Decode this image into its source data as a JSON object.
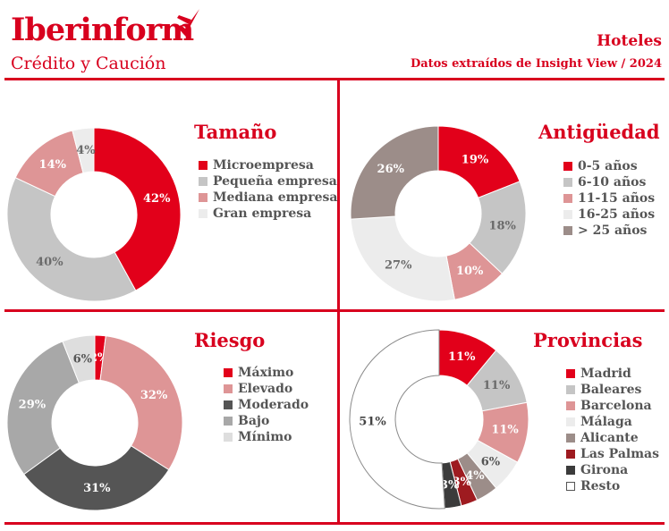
{
  "header": {
    "brand": "Iberinform",
    "brand_sub": "Crédito y Caución",
    "title": "Hoteles",
    "subtitle": "Datos extraídos de Insight View / 2024"
  },
  "colors": {
    "brand_red": "#d8001e",
    "rule_red": "#d8001e"
  },
  "chart_data": [
    {
      "type": "pie",
      "title": "Tamaño",
      "categories": [
        "Microempresa",
        "Pequeña empresa",
        "Mediana empresa",
        "Gran empresa"
      ],
      "values": [
        42,
        40,
        14,
        4
      ],
      "labels": [
        "42%",
        "40%",
        "14%",
        "4%"
      ],
      "colors": [
        "#e2001a",
        "#c5c5c5",
        "#de9596",
        "#ececec"
      ],
      "label_colors": [
        "#ffffff",
        "#6b6b6b",
        "#ffffff",
        "#6b6b6b"
      ],
      "donut": true,
      "legend_position": "right"
    },
    {
      "type": "pie",
      "title": "Antigüedad",
      "categories": [
        "0-5 años",
        "6-10 años",
        "11-15 años",
        "16-25 años",
        "> 25 años"
      ],
      "values": [
        19,
        18,
        10,
        27,
        26
      ],
      "labels": [
        "19%",
        "18%",
        "10%",
        "27%",
        "26%"
      ],
      "colors": [
        "#e2001a",
        "#c5c5c5",
        "#de9596",
        "#ececec",
        "#9c8d89"
      ],
      "label_colors": [
        "#ffffff",
        "#6b6b6b",
        "#ffffff",
        "#6b6b6b",
        "#ffffff"
      ],
      "donut": true,
      "legend_position": "right"
    },
    {
      "type": "pie",
      "title": "Riesgo",
      "categories": [
        "Máximo",
        "Elevado",
        "Moderado",
        "Bajo",
        "Mínimo"
      ],
      "values": [
        2,
        32,
        31,
        29,
        6
      ],
      "labels": [
        "2%",
        "32%",
        "31%",
        "29%",
        "6%"
      ],
      "colors": [
        "#e2001a",
        "#de9596",
        "#555555",
        "#a8a8a8",
        "#dedede"
      ],
      "label_colors": [
        "#ffffff",
        "#ffffff",
        "#ffffff",
        "#ffffff",
        "#555555"
      ],
      "donut": true,
      "legend_position": "right"
    },
    {
      "type": "pie",
      "title": "Provincias",
      "categories": [
        "Madrid",
        "Baleares",
        "Barcelona",
        "Málaga",
        "Alicante",
        "Las Palmas",
        "Girona",
        "Resto"
      ],
      "values": [
        11,
        11,
        11,
        6,
        4,
        3,
        3,
        51
      ],
      "labels": [
        "11%",
        "11%",
        "11%",
        "6%",
        "4%",
        "3%",
        "3%",
        "51%"
      ],
      "colors": [
        "#e2001a",
        "#c5c5c5",
        "#de9596",
        "#ececec",
        "#9c8d89",
        "#9e1b20",
        "#3b3b3b",
        "#ffffff"
      ],
      "label_colors": [
        "#ffffff",
        "#6b6b6b",
        "#ffffff",
        "#555555",
        "#ffffff",
        "#ffffff",
        "#ffffff",
        "#444444"
      ],
      "donut": true,
      "legend_position": "right"
    }
  ]
}
